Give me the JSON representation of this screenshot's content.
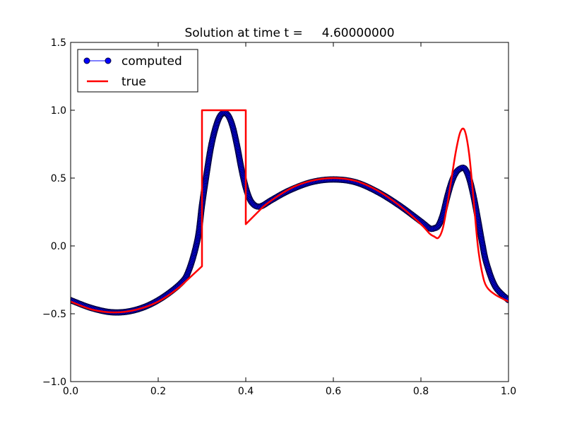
{
  "chart_data": {
    "type": "line",
    "title": "Solution at time t =     4.60000000",
    "xlabel": "",
    "ylabel": "",
    "xlim": [
      0.0,
      1.0
    ],
    "ylim": [
      -1.0,
      1.5
    ],
    "xticks": [
      0.0,
      0.2,
      0.4,
      0.6,
      0.8,
      1.0
    ],
    "xtick_labels": [
      "0.0",
      "0.2",
      "0.4",
      "0.6",
      "0.8",
      "1.0"
    ],
    "yticks": [
      -1.0,
      -0.5,
      0.0,
      0.5,
      1.0,
      1.5
    ],
    "ytick_labels": [
      "−1.0",
      "−0.5",
      "0.0",
      "0.5",
      "1.0",
      "1.5"
    ],
    "grid": false,
    "legend_position": "top-left",
    "series": [
      {
        "name": "computed",
        "style": "line-with-circle-markers",
        "color": "#0000ff",
        "edge_color": "#00003a",
        "x": [
          0.0,
          0.05,
          0.1,
          0.15,
          0.2,
          0.25,
          0.27,
          0.29,
          0.3,
          0.31,
          0.32,
          0.33,
          0.34,
          0.35,
          0.36,
          0.37,
          0.38,
          0.39,
          0.4,
          0.41,
          0.42,
          0.43,
          0.44,
          0.46,
          0.5,
          0.55,
          0.6,
          0.65,
          0.7,
          0.75,
          0.8,
          0.82,
          0.83,
          0.84,
          0.85,
          0.86,
          0.87,
          0.88,
          0.89,
          0.9,
          0.91,
          0.92,
          0.93,
          0.94,
          0.95,
          0.97,
          1.0
        ],
        "y": [
          -0.4,
          -0.46,
          -0.49,
          -0.47,
          -0.4,
          -0.28,
          -0.18,
          0.05,
          0.3,
          0.52,
          0.72,
          0.86,
          0.95,
          0.98,
          0.96,
          0.88,
          0.74,
          0.57,
          0.43,
          0.34,
          0.3,
          0.29,
          0.3,
          0.34,
          0.41,
          0.47,
          0.49,
          0.47,
          0.4,
          0.3,
          0.18,
          0.13,
          0.13,
          0.15,
          0.23,
          0.36,
          0.47,
          0.54,
          0.57,
          0.57,
          0.5,
          0.37,
          0.2,
          0.02,
          -0.13,
          -0.3,
          -0.4
        ]
      },
      {
        "name": "true",
        "style": "line",
        "color": "#ff0000",
        "x": [
          0.0,
          0.05,
          0.1,
          0.15,
          0.2,
          0.25,
          0.3,
          0.3,
          0.4,
          0.4,
          0.44,
          0.5,
          0.55,
          0.6,
          0.65,
          0.7,
          0.75,
          0.8,
          0.82,
          0.83,
          0.84,
          0.85,
          0.86,
          0.87,
          0.88,
          0.89,
          0.9,
          0.91,
          0.92,
          0.93,
          0.94,
          0.95,
          0.97,
          1.0
        ],
        "y": [
          -0.41,
          -0.47,
          -0.49,
          -0.47,
          -0.41,
          -0.3,
          -0.15,
          1.0,
          1.0,
          0.16,
          0.29,
          0.42,
          0.48,
          0.5,
          0.48,
          0.41,
          0.3,
          0.16,
          0.09,
          0.07,
          0.06,
          0.13,
          0.3,
          0.5,
          0.7,
          0.84,
          0.85,
          0.68,
          0.35,
          0.0,
          -0.2,
          -0.3,
          -0.36,
          -0.41
        ]
      }
    ]
  }
}
